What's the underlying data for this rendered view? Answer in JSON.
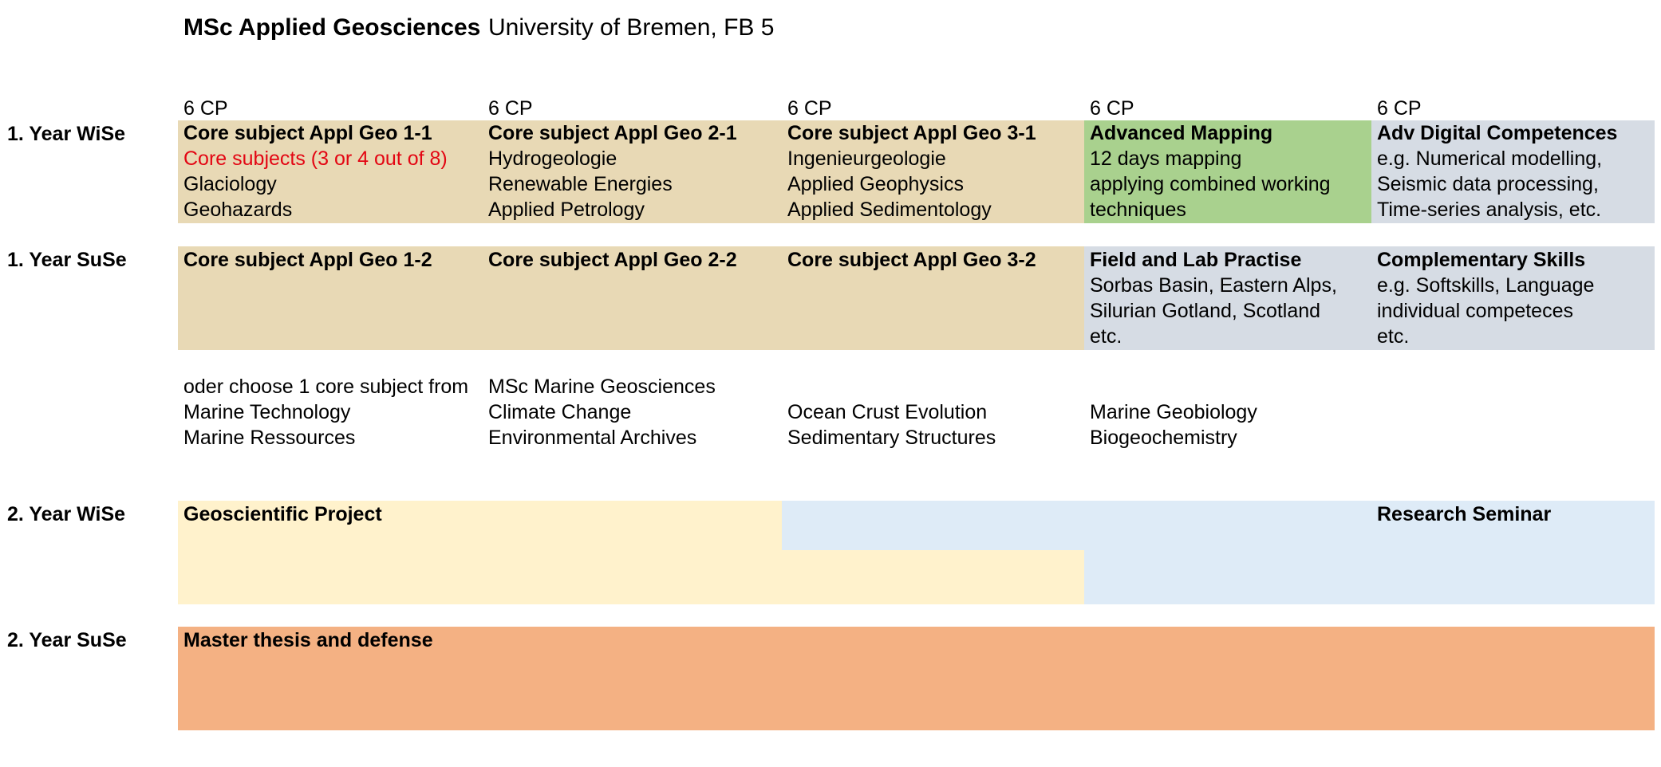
{
  "header": {
    "program": "MSc Applied Geosciences",
    "university": "University of Bremen, FB 5"
  },
  "rows": {
    "y1_wise": "1. Year  WiSe",
    "y1_suse": "1. Year  SuSe",
    "y2_wise": "2. Year  WiSe",
    "y2_suse": "2. Year  SuSe"
  },
  "cp": [
    "6 CP",
    "6 CP",
    "6 CP",
    "6 CP",
    "6 CP"
  ],
  "wise1": {
    "col1": {
      "title": "Core subject Appl Geo 1-1",
      "note": "Core subjects (3 or 4 out of 8)",
      "lines": [
        "Glaciology",
        "Geohazards"
      ]
    },
    "col2": {
      "title": "Core subject Appl Geo 2-1",
      "lines": [
        "Hydrogeologie",
        "Renewable Energies",
        "Applied Petrology"
      ]
    },
    "col3": {
      "title": "Core subject Appl Geo 3-1",
      "lines": [
        "Ingenieurgeologie",
        "Applied Geophysics",
        "Applied Sedimentology"
      ]
    },
    "col4": {
      "title": "Advanced Mapping",
      "lines": [
        "12 days mapping",
        "applying combined working",
        "techniques"
      ]
    },
    "col5": {
      "title": "Adv Digital Competences",
      "lines": [
        "e.g. Numerical modelling,",
        "Seismic data processing,",
        "Time-series analysis, etc."
      ]
    }
  },
  "suse1": {
    "col1": {
      "title": "Core subject Appl Geo 1-2"
    },
    "col2": {
      "title": "Core subject Appl Geo 2-2"
    },
    "col3": {
      "title": "Core subject Appl Geo 3-2"
    },
    "col4": {
      "title": "Field and Lab Practise",
      "lines": [
        "Sorbas Basin, Eastern Alps,",
        "Silurian Gotland, Scotland",
        "etc."
      ]
    },
    "col5": {
      "title": "Complementary Skills",
      "lines": [
        "e.g. Softskills, Language",
        "individual competeces",
        "etc."
      ]
    }
  },
  "marine": {
    "intro_a": "oder  choose 1 core subject from",
    "intro_b": "MSc Marine Geosciences",
    "col1": [
      "Marine Technology",
      "Marine Ressources"
    ],
    "col2": [
      "Climate Change",
      "Environmental Archives"
    ],
    "col3": [
      "Ocean Crust Evolution",
      "Sedimentary Structures"
    ],
    "col4": [
      "Marine Geobiology",
      "Biogeochemistry"
    ]
  },
  "wise2": {
    "project": "Geoscientific Project",
    "seminar": "Research Seminar"
  },
  "suse2": {
    "thesis": "Master thesis and defense"
  },
  "colors": {
    "core": "#e8d9b5",
    "mapping": "#a9d18e",
    "digital": "#d6dce4",
    "project": "#fff2cc",
    "seminar": "#deebf7",
    "thesis": "#f4b183",
    "note": "#e30613"
  }
}
